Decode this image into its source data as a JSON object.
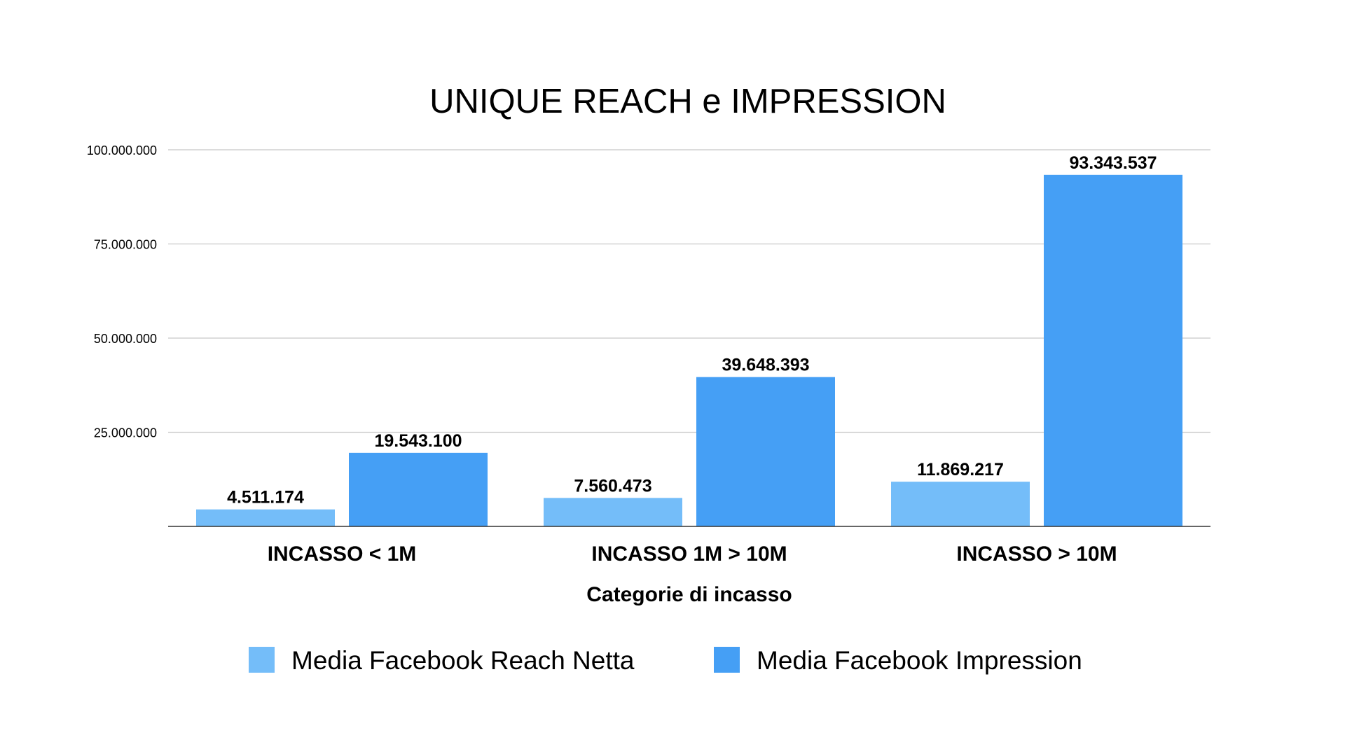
{
  "chart_data": {
    "type": "bar",
    "title": "UNIQUE REACH e IMPRESSION",
    "xlabel": "Categorie di incasso",
    "ylabel": "",
    "categories": [
      "INCASSO < 1M",
      "INCASSO 1M > 10M",
      "INCASSO > 10M"
    ],
    "series": [
      {
        "name": "Media Facebook Reach Netta",
        "color": "#74bdf9",
        "values": [
          4511174,
          7560473,
          11869217
        ],
        "labels": [
          "4.511.174",
          "7.560.473",
          "11.869.217"
        ]
      },
      {
        "name": "Media Facebook Impression",
        "color": "#459ff5",
        "values": [
          19543100,
          39648393,
          93343537
        ],
        "labels": [
          "19.543.100",
          "39.648.393",
          "93.343.537"
        ]
      }
    ],
    "ylim": [
      0,
      100000000
    ],
    "yticks": [
      25000000,
      50000000,
      75000000,
      100000000
    ],
    "ytick_labels": [
      "25.000.000",
      "50.000.000",
      "75.000.000",
      "100.000.000"
    ],
    "grid": true,
    "legend": "bottom"
  }
}
